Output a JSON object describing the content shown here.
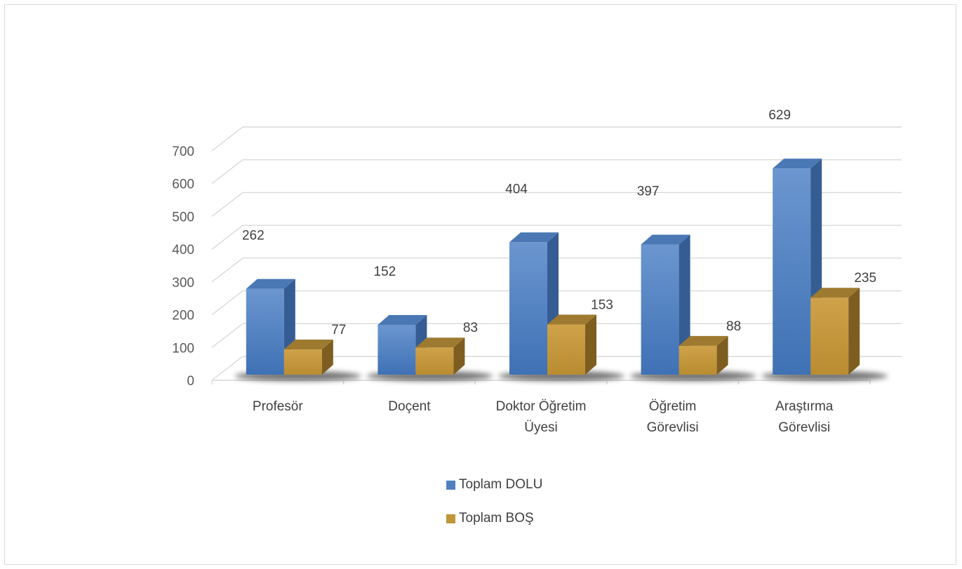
{
  "chart_data": {
    "type": "bar",
    "categories": [
      [
        "Profesör"
      ],
      [
        "Doçent"
      ],
      [
        "Doktor Öğretim",
        "Üyesi"
      ],
      [
        "Öğretim",
        "Görevlisi"
      ],
      [
        "Araştırma",
        "Görevlisi"
      ]
    ],
    "series": [
      {
        "name": "Toplam DOLU",
        "values": [
          262,
          152,
          404,
          397,
          629
        ],
        "color": "#4f81bd"
      },
      {
        "name": "Toplam BOŞ",
        "values": [
          77,
          83,
          153,
          88,
          235
        ],
        "color": "#c0963b"
      }
    ],
    "yticks": [
      "0",
      "100",
      "200",
      "300",
      "400",
      "500",
      "600",
      "700"
    ],
    "ylim": [
      0,
      700
    ],
    "grid": true,
    "legend_position": "bottom",
    "style": "3d-clustered-column"
  }
}
